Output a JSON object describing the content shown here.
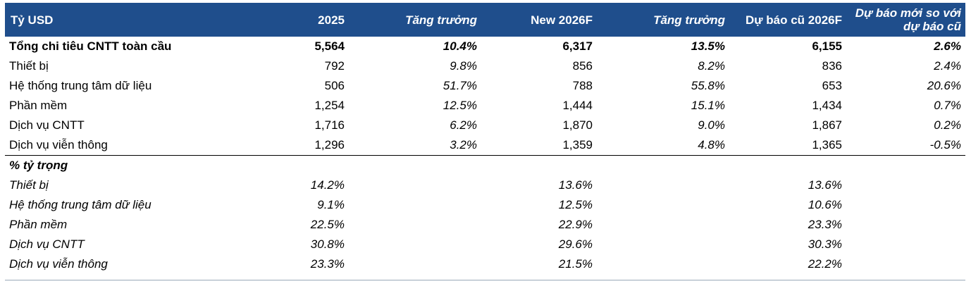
{
  "header": {
    "col0": "Tỷ USD",
    "col1": "2025",
    "col2": "Tăng trưởng",
    "col3": "New 2026F",
    "col4": "Tăng trưởng",
    "col5": "Dự báo cũ 2026F",
    "col6": "Dự báo mới so với dự báo cũ"
  },
  "rows": [
    {
      "label": "Tổng chi tiêu CNTT toàn cầu",
      "v2025": "5,564",
      "g2025": "10.4%",
      "v2026": "6,317",
      "g2026": "13.5%",
      "old": "6,155",
      "diff": "2.6%"
    },
    {
      "label": "Thiết bị",
      "v2025": "792",
      "g2025": "9.8%",
      "v2026": "856",
      "g2026": "8.2%",
      "old": "836",
      "diff": "2.4%"
    },
    {
      "label": "Hệ thống trung tâm dữ liệu",
      "v2025": "506",
      "g2025": "51.7%",
      "v2026": "788",
      "g2026": "55.8%",
      "old": "653",
      "diff": "20.6%"
    },
    {
      "label": "Phần mềm",
      "v2025": "1,254",
      "g2025": "12.5%",
      "v2026": "1,444",
      "g2026": "15.1%",
      "old": "1,434",
      "diff": "0.7%"
    },
    {
      "label": "Dịch vụ CNTT",
      "v2025": "1,716",
      "g2025": "6.2%",
      "v2026": "1,870",
      "g2026": "9.0%",
      "old": "1,867",
      "diff": "0.2%"
    },
    {
      "label": "Dịch vụ viễn thông",
      "v2025": "1,296",
      "g2025": "3.2%",
      "v2026": "1,359",
      "g2026": "4.8%",
      "old": "1,365",
      "diff": "-0.5%"
    }
  ],
  "share": {
    "title": "% tỷ trọng",
    "rows": [
      {
        "label": "Thiết bị",
        "v2025": "14.2%",
        "v2026": "13.6%",
        "old": "13.6%"
      },
      {
        "label": "Hệ thống trung tâm dữ liệu",
        "v2025": "9.1%",
        "v2026": "12.5%",
        "old": "10.6%"
      },
      {
        "label": "Phần mềm",
        "v2025": "22.5%",
        "v2026": "22.9%",
        "old": "23.3%"
      },
      {
        "label": "Dịch vụ CNTT",
        "v2025": "30.8%",
        "v2026": "29.6%",
        "old": "30.3%"
      },
      {
        "label": "Dịch vụ viễn thông",
        "v2025": "23.3%",
        "v2026": "21.5%",
        "old": "22.2%"
      }
    ]
  },
  "colors": {
    "header_bg": "#1f4e8c",
    "header_text": "#ffffff"
  }
}
